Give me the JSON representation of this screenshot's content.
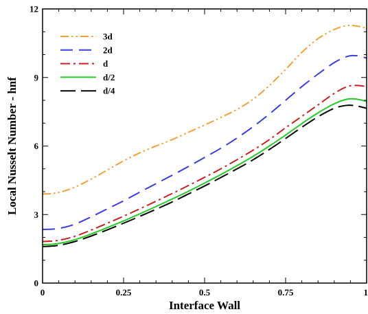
{
  "chart_data": {
    "type": "line",
    "xlabel": "Interface Wall",
    "ylabel": "Local Nusselt Number - hnf",
    "xlim": [
      0,
      1
    ],
    "ylim": [
      0,
      12
    ],
    "x_ticks": [
      0,
      0.25,
      0.5,
      0.75,
      1
    ],
    "x_tick_labels": [
      "0",
      "0.25",
      "0.5",
      "0.75",
      "1"
    ],
    "y_ticks": [
      0,
      3,
      6,
      9,
      12
    ],
    "y_tick_labels": [
      "0",
      "3",
      "6",
      "9",
      "12"
    ],
    "grid": false,
    "legend_position": "top-left",
    "series": [
      {
        "name": "3d",
        "color": "#F5A033",
        "dash": "dash-dot-dot",
        "points": [
          [
            0,
            3.9
          ],
          [
            0.03,
            3.92
          ],
          [
            0.06,
            4.0
          ],
          [
            0.1,
            4.2
          ],
          [
            0.15,
            4.55
          ],
          [
            0.2,
            4.95
          ],
          [
            0.25,
            5.35
          ],
          [
            0.3,
            5.7
          ],
          [
            0.35,
            6.0
          ],
          [
            0.4,
            6.28
          ],
          [
            0.45,
            6.6
          ],
          [
            0.5,
            6.92
          ],
          [
            0.55,
            7.25
          ],
          [
            0.6,
            7.6
          ],
          [
            0.65,
            8.05
          ],
          [
            0.7,
            8.65
          ],
          [
            0.75,
            9.35
          ],
          [
            0.8,
            10.1
          ],
          [
            0.85,
            10.7
          ],
          [
            0.9,
            11.1
          ],
          [
            0.94,
            11.27
          ],
          [
            0.97,
            11.25
          ],
          [
            1.0,
            11.15
          ]
        ]
      },
      {
        "name": "2d",
        "color": "#3B3BE8",
        "dash": "dash",
        "points": [
          [
            0,
            2.35
          ],
          [
            0.03,
            2.36
          ],
          [
            0.06,
            2.42
          ],
          [
            0.1,
            2.58
          ],
          [
            0.15,
            2.9
          ],
          [
            0.2,
            3.25
          ],
          [
            0.25,
            3.6
          ],
          [
            0.3,
            3.98
          ],
          [
            0.35,
            4.35
          ],
          [
            0.4,
            4.72
          ],
          [
            0.45,
            5.1
          ],
          [
            0.5,
            5.5
          ],
          [
            0.55,
            5.9
          ],
          [
            0.6,
            6.35
          ],
          [
            0.65,
            6.85
          ],
          [
            0.7,
            7.4
          ],
          [
            0.75,
            8.0
          ],
          [
            0.8,
            8.6
          ],
          [
            0.85,
            9.15
          ],
          [
            0.9,
            9.65
          ],
          [
            0.94,
            9.92
          ],
          [
            0.97,
            9.95
          ],
          [
            1.0,
            9.85
          ]
        ]
      },
      {
        "name": "d",
        "color": "#CC2020",
        "dash": "dash-dot",
        "points": [
          [
            0,
            1.82
          ],
          [
            0.03,
            1.84
          ],
          [
            0.06,
            1.9
          ],
          [
            0.1,
            2.05
          ],
          [
            0.15,
            2.32
          ],
          [
            0.2,
            2.62
          ],
          [
            0.25,
            2.93
          ],
          [
            0.3,
            3.25
          ],
          [
            0.35,
            3.58
          ],
          [
            0.4,
            3.92
          ],
          [
            0.45,
            4.27
          ],
          [
            0.5,
            4.63
          ],
          [
            0.55,
            5.0
          ],
          [
            0.6,
            5.4
          ],
          [
            0.65,
            5.82
          ],
          [
            0.7,
            6.28
          ],
          [
            0.75,
            6.8
          ],
          [
            0.8,
            7.3
          ],
          [
            0.85,
            7.8
          ],
          [
            0.9,
            8.3
          ],
          [
            0.94,
            8.6
          ],
          [
            0.97,
            8.65
          ],
          [
            1.0,
            8.6
          ]
        ]
      },
      {
        "name": "d/2",
        "color": "#22CC22",
        "dash": "solid",
        "points": [
          [
            0,
            1.68
          ],
          [
            0.03,
            1.7
          ],
          [
            0.06,
            1.76
          ],
          [
            0.1,
            1.9
          ],
          [
            0.15,
            2.15
          ],
          [
            0.2,
            2.43
          ],
          [
            0.25,
            2.72
          ],
          [
            0.3,
            3.03
          ],
          [
            0.35,
            3.35
          ],
          [
            0.4,
            3.68
          ],
          [
            0.45,
            4.02
          ],
          [
            0.5,
            4.38
          ],
          [
            0.55,
            4.75
          ],
          [
            0.6,
            5.14
          ],
          [
            0.65,
            5.55
          ],
          [
            0.7,
            6.0
          ],
          [
            0.75,
            6.48
          ],
          [
            0.8,
            6.98
          ],
          [
            0.85,
            7.45
          ],
          [
            0.9,
            7.85
          ],
          [
            0.94,
            8.05
          ],
          [
            0.97,
            8.05
          ],
          [
            1.0,
            7.95
          ]
        ]
      },
      {
        "name": "d/4",
        "color": "#000000",
        "dash": "long-dash",
        "points": [
          [
            0,
            1.6
          ],
          [
            0.03,
            1.62
          ],
          [
            0.06,
            1.68
          ],
          [
            0.1,
            1.82
          ],
          [
            0.15,
            2.06
          ],
          [
            0.2,
            2.33
          ],
          [
            0.25,
            2.62
          ],
          [
            0.3,
            2.92
          ],
          [
            0.35,
            3.23
          ],
          [
            0.4,
            3.55
          ],
          [
            0.45,
            3.9
          ],
          [
            0.5,
            4.25
          ],
          [
            0.55,
            4.62
          ],
          [
            0.6,
            5.0
          ],
          [
            0.65,
            5.4
          ],
          [
            0.7,
            5.85
          ],
          [
            0.75,
            6.33
          ],
          [
            0.8,
            6.82
          ],
          [
            0.85,
            7.28
          ],
          [
            0.9,
            7.65
          ],
          [
            0.94,
            7.78
          ],
          [
            0.97,
            7.75
          ],
          [
            1.0,
            7.65
          ]
        ]
      }
    ]
  }
}
